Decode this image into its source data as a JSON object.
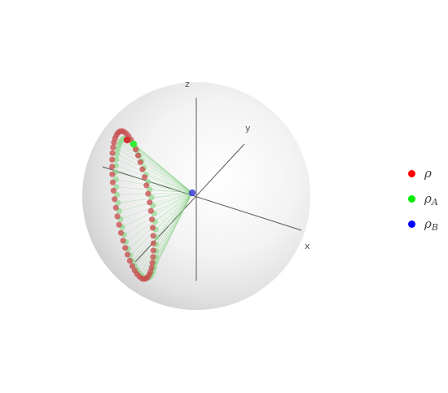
{
  "axes": {
    "x_label": "x",
    "y_label": "y",
    "z_label": "z"
  },
  "legend": {
    "items": [
      {
        "name": "rho",
        "symbol": "ρ",
        "subscript": "",
        "color": "#ff0000"
      },
      {
        "name": "rho_a",
        "symbol": "ρ",
        "subscript": "A",
        "color": "#00ee00"
      },
      {
        "name": "rho_b",
        "symbol": "ρ",
        "subscript": "B",
        "color": "#0000ff"
      }
    ]
  },
  "colors": {
    "rho": "#c85050",
    "rho_a": "#8fd88f",
    "rho_b": "#3a3fd6",
    "rho_a_highlight": "#33ee33",
    "sphere_edge": "#d7d7d7",
    "axis": "#555555"
  }
}
